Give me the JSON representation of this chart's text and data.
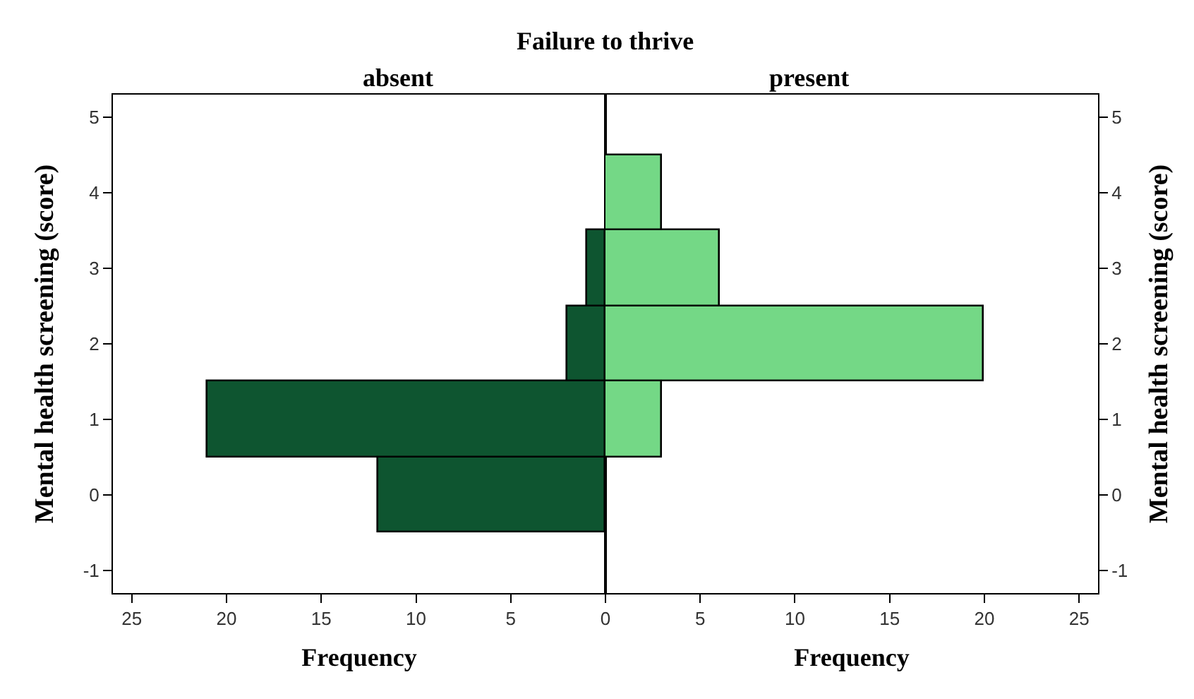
{
  "chart_data": [
    {
      "type": "histogram",
      "orientation": "horizontal",
      "title": "Failure to thrive",
      "subtitle": "absent",
      "xlabel": "Frequency",
      "ylabel": "Mental health screening (score)",
      "bins": [
        -0.5,
        0.5,
        1.5,
        2.5,
        3.5,
        4.5
      ],
      "values": [
        12,
        21,
        2,
        1,
        0
      ],
      "color": "#0e5530",
      "xlim": [
        26,
        0
      ],
      "xticks": [
        25,
        20,
        15,
        10,
        5,
        {
          "value": 0,
          "label": null
        }
      ],
      "ylim": [
        -1.3,
        5.3
      ],
      "yticks": [
        -1,
        0,
        1,
        2,
        3,
        4,
        5
      ],
      "grid": false
    },
    {
      "type": "histogram",
      "orientation": "horizontal",
      "subtitle": "present",
      "xlabel": "Frequency",
      "ylabel": "Mental health screening (score)",
      "bins": [
        -0.5,
        0.5,
        1.5,
        2.5,
        3.5,
        4.5
      ],
      "values": [
        0,
        3,
        20,
        6,
        3
      ],
      "color": "#74d886",
      "xlim": [
        0,
        26
      ],
      "xticks": [
        0,
        5,
        10,
        15,
        20,
        25
      ],
      "ylim": [
        -1.3,
        5.3
      ],
      "yticks": [
        -1,
        0,
        1,
        2,
        3,
        4,
        5
      ],
      "grid": false
    }
  ]
}
